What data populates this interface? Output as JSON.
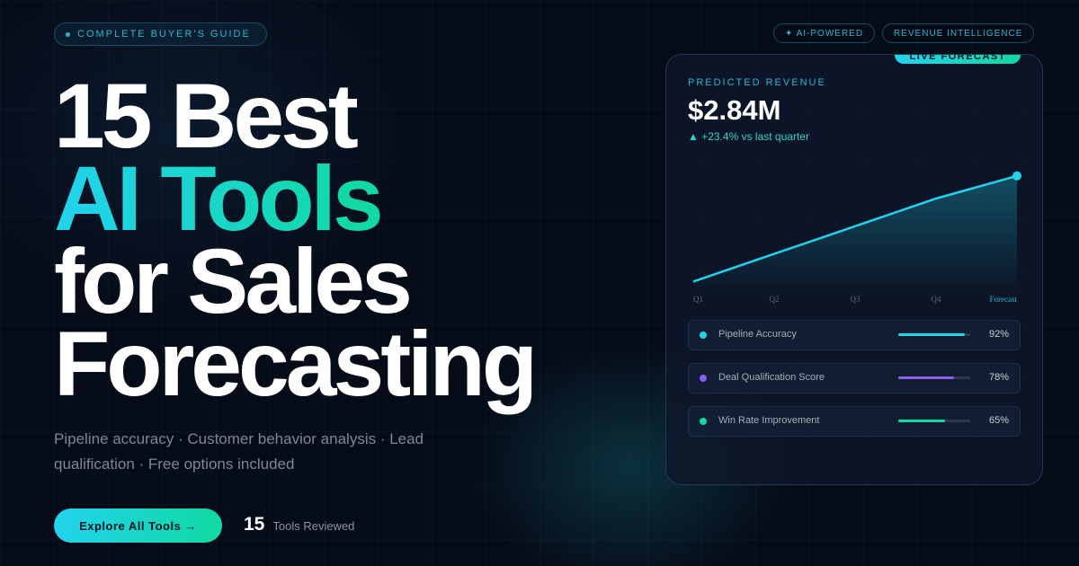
{
  "badge": "COMPLETE BUYER'S GUIDE",
  "tags": [
    "✦ AI-POWERED",
    "REVENUE INTELLIGENCE"
  ],
  "headline": {
    "line1": "15 Best",
    "line2": "AI Tools",
    "line3": "for Sales",
    "line4": "Forecasting"
  },
  "subtitle": "Pipeline accuracy · Customer behavior analysis · Lead qualification · Free options included",
  "cta": "Explore All Tools →",
  "stat": {
    "value": "15",
    "label": "Tools Reviewed"
  },
  "card": {
    "tag": "LIVE FORECAST",
    "label": "PREDICTED REVENUE",
    "value": "$2.84M",
    "change": "▲ +23.4% vs last quarter"
  },
  "chart_data": [
    {
      "type": "line",
      "categories": [
        "Q1",
        "Q2",
        "Q3",
        "Q4",
        "Forecast"
      ],
      "values": [
        9,
        31,
        53,
        75,
        93
      ],
      "ylim": [
        0,
        100
      ],
      "color": "#22d3ee"
    },
    {
      "type": "bar",
      "categories": [
        "Pipeline Accuracy",
        "Deal Qualification Score",
        "Win Rate Improvement"
      ],
      "values": [
        92,
        78,
        65
      ],
      "value_labels": [
        "92%",
        "78%",
        "65%"
      ],
      "xlim": [
        0,
        100
      ],
      "colors": [
        "#22d3ee",
        "#8b5cf6",
        "#10d9a0"
      ]
    }
  ]
}
